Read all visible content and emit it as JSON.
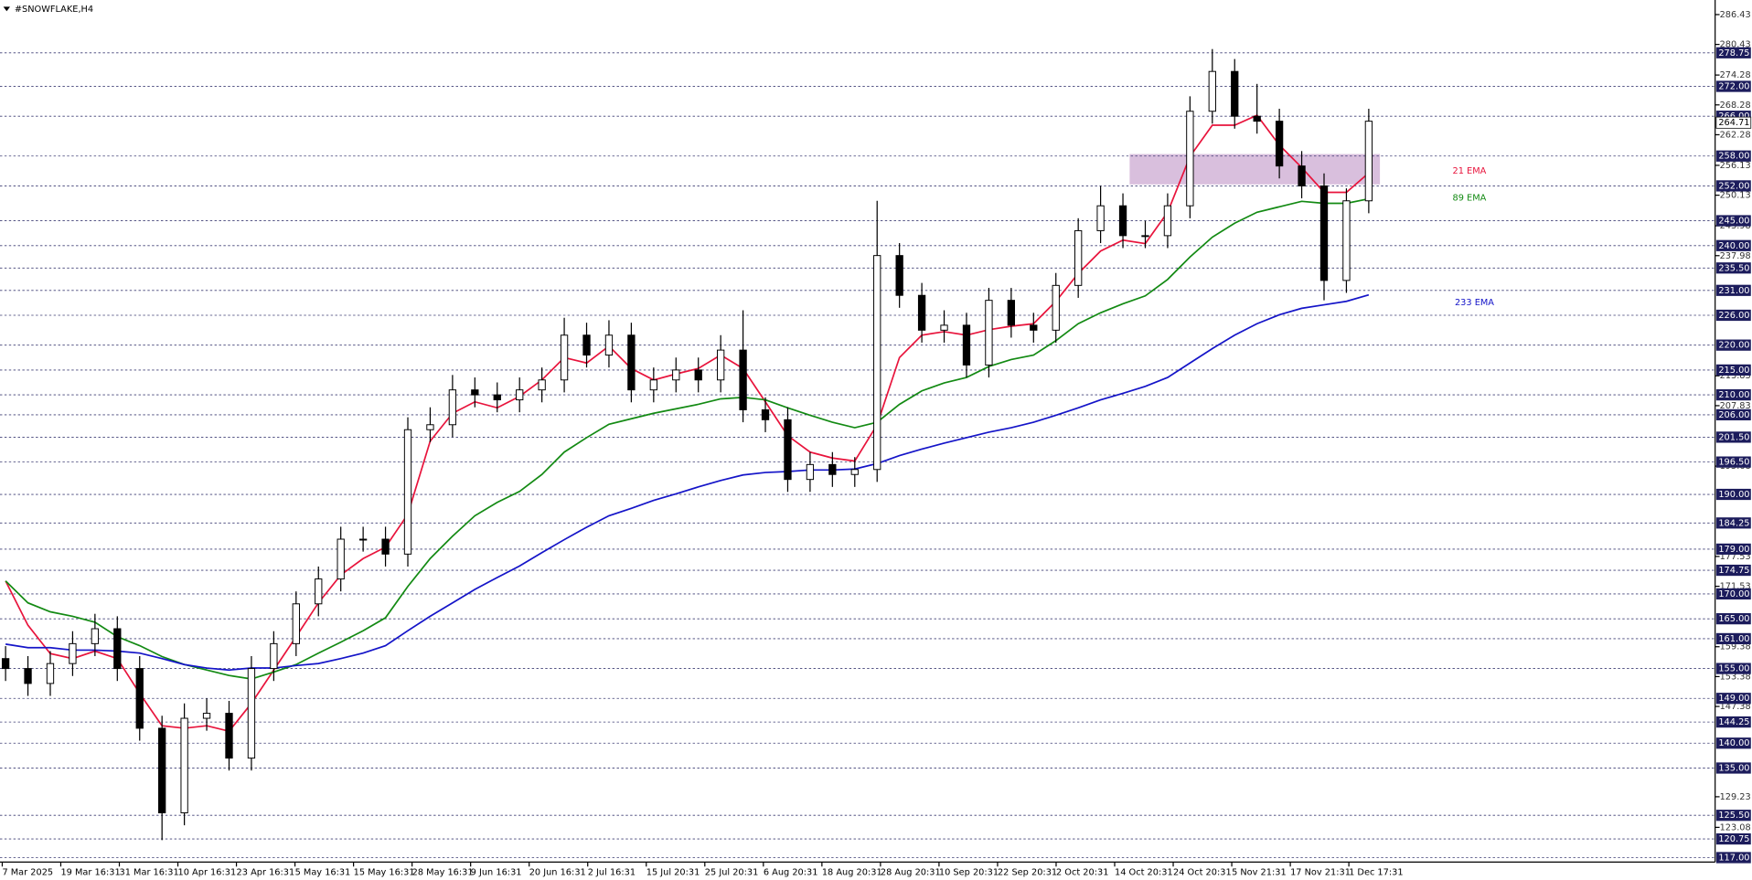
{
  "chart_data": {
    "type": "candlestick",
    "title": "#SNOWFLAKE,H4",
    "ylim": [
      116.1,
      289.35
    ],
    "yticks": [
      286.43,
      280.43,
      274.28,
      268.28,
      262.28,
      256.13,
      250.13,
      243.98,
      237.98,
      213.83,
      207.83,
      195.68,
      177.53,
      171.53,
      159.38,
      153.38,
      147.38,
      129.23,
      123.08
    ],
    "levels": [
      278.75,
      {
        "value": 272,
        "label": "272.00"
      },
      {
        "value": 266,
        "label": "266.00"
      },
      {
        "value": 258,
        "label": "258.00"
      },
      {
        "value": 252,
        "label": "252.00"
      },
      {
        "value": 245,
        "label": "245.00"
      },
      {
        "value": 240,
        "label": "240.00"
      },
      {
        "value": 235.5,
        "label": "235.50"
      },
      {
        "value": 231,
        "label": "231.00"
      },
      {
        "value": 226,
        "label": "226.00"
      },
      {
        "value": 220,
        "label": "220.00"
      },
      {
        "value": 215,
        "label": "215.00"
      },
      {
        "value": 210,
        "label": "210.00"
      },
      {
        "value": 206,
        "label": "206.00"
      },
      {
        "value": 201.5,
        "label": "201.50"
      },
      {
        "value": 196.5,
        "label": "196.50"
      },
      {
        "value": 190,
        "label": "190.00"
      },
      184.25,
      {
        "value": 179,
        "label": "179.00"
      },
      174.75,
      {
        "value": 170,
        "label": "170.00"
      },
      {
        "value": 165,
        "label": "165.00"
      },
      {
        "value": 161,
        "label": "161.00"
      },
      {
        "value": 155,
        "label": "155.00"
      },
      {
        "value": 149,
        "label": "149.00"
      },
      144.25,
      {
        "value": 140,
        "label": "140.00"
      },
      {
        "value": 135,
        "label": "135.00"
      },
      {
        "value": 125.5,
        "label": "125.50"
      },
      120.75,
      {
        "value": 117,
        "label": "117.00"
      }
    ],
    "level_color": "#1c1c5c",
    "last_price": 264.71,
    "zone": {
      "ylim": [
        252.3,
        258.4
      ],
      "x_from": 50.3,
      "x_to": 61.5,
      "color": "#d9bfdd"
    },
    "x_labels": [
      "7 Mar 2025",
      "19 Mar 16:31",
      "31 Mar 16:31",
      "10 Apr 16:31",
      "23 Apr 16:31",
      "5 May 16:31",
      "15 May 16:31",
      "28 May 16:31",
      "9 Jun 16:31",
      "20 Jun 16:31",
      "2 Jul 16:31",
      "15 Jul 20:31",
      "25 Jul 20:31",
      "6 Aug 20:31",
      "18 Aug 20:31",
      "28 Aug 20:31",
      "10 Sep 20:31",
      "22 Sep 20:31",
      "2 Oct 20:31",
      "14 Oct 20:31",
      "24 Oct 20:31",
      "5 Nov 21:31",
      "17 Nov 21:31",
      "1 Dec 17:31"
    ],
    "up_color": "#ffffff",
    "down_color": "#000000",
    "ohlc": [
      [
        157,
        159.5,
        152.5,
        155
      ],
      [
        155,
        157.5,
        149.5,
        152
      ],
      [
        152,
        158.5,
        149.5,
        156
      ],
      [
        156,
        162.5,
        153.5,
        160
      ],
      [
        160,
        166,
        157.5,
        163
      ],
      [
        163,
        165.5,
        152.5,
        155
      ],
      [
        155,
        157.5,
        140.5,
        143
      ],
      [
        143,
        145.5,
        120.5,
        126
      ],
      [
        126,
        148,
        123.5,
        145
      ],
      [
        145,
        149,
        142.5,
        146
      ],
      [
        146,
        148.5,
        134.5,
        137
      ],
      [
        137,
        157.5,
        134.5,
        155
      ],
      [
        155,
        162.5,
        152.5,
        160
      ],
      [
        160,
        170.5,
        157.5,
        168
      ],
      [
        168,
        175.5,
        165.5,
        173
      ],
      [
        173,
        183.5,
        170.5,
        181
      ],
      [
        181,
        183.5,
        178.5,
        181
      ],
      [
        181,
        183.5,
        175.5,
        178
      ],
      [
        178,
        205.5,
        175.5,
        203
      ],
      [
        203,
        207.5,
        200.5,
        204
      ],
      [
        204,
        214,
        201.5,
        211
      ],
      [
        211,
        213.5,
        207.5,
        210
      ],
      [
        210,
        212.5,
        206.5,
        209
      ],
      [
        209,
        213.5,
        206.5,
        211
      ],
      [
        211,
        215.5,
        208.5,
        213
      ],
      [
        213,
        225.5,
        210.5,
        222
      ],
      [
        222,
        224.5,
        215.5,
        218
      ],
      [
        218,
        225,
        215.5,
        222
      ],
      [
        222,
        224.5,
        208.5,
        211
      ],
      [
        211,
        215.5,
        208.5,
        213
      ],
      [
        213,
        217.5,
        210.5,
        215
      ],
      [
        215,
        217.5,
        210.5,
        213
      ],
      [
        213,
        222,
        210.5,
        219
      ],
      [
        219,
        227,
        204.5,
        207
      ],
      [
        207,
        209.5,
        202.5,
        205
      ],
      [
        205,
        207.5,
        190.5,
        193
      ],
      [
        193,
        198.5,
        190.5,
        196
      ],
      [
        196,
        198.5,
        191.5,
        194
      ],
      [
        194,
        197.5,
        191.5,
        195
      ],
      [
        195,
        249,
        192.5,
        238
      ],
      [
        238,
        240.5,
        227.5,
        230
      ],
      [
        230,
        232.5,
        220.5,
        223
      ],
      [
        223,
        227,
        220.5,
        224
      ],
      [
        224,
        226.5,
        213.5,
        216
      ],
      [
        216,
        231.5,
        213.5,
        229
      ],
      [
        229,
        231.5,
        221.5,
        224
      ],
      [
        224,
        226.5,
        220.5,
        223
      ],
      [
        223,
        234.5,
        220.5,
        232
      ],
      [
        232,
        245.5,
        229.5,
        243
      ],
      [
        243,
        252,
        240.5,
        248
      ],
      [
        248,
        250.5,
        239.5,
        242
      ],
      [
        242,
        245,
        239.5,
        242
      ],
      [
        242,
        250.5,
        239.5,
        248
      ],
      [
        248,
        270,
        245.5,
        267
      ],
      [
        267,
        279.5,
        264.5,
        275
      ],
      [
        275,
        277.5,
        263.5,
        266
      ],
      [
        266,
        272.5,
        262.5,
        265
      ],
      [
        265,
        267.5,
        253.5,
        256
      ],
      [
        256,
        259,
        249.5,
        252
      ],
      [
        252,
        254.5,
        229,
        233
      ],
      [
        233,
        251.5,
        230.5,
        249
      ],
      [
        249,
        267.5,
        246.5,
        265
      ]
    ],
    "series": [
      {
        "name": "21 EMA",
        "color": "#e8143c",
        "values": [
          172.6,
          163.7,
          158,
          157,
          158.5,
          157,
          150,
          143.5,
          143,
          143.5,
          142.4,
          148,
          154.7,
          161.4,
          168.2,
          173.8,
          177.1,
          179.4,
          186,
          200.7,
          206.3,
          208.6,
          207.4,
          209.7,
          213,
          217.5,
          216.4,
          219.8,
          215.3,
          213,
          214.2,
          215.3,
          218,
          215.3,
          208.6,
          201.8,
          198.5,
          197.3,
          196.7,
          204,
          217.5,
          222,
          222.7,
          222,
          223.1,
          223.8,
          224.3,
          228.8,
          234.4,
          238.9,
          241.1,
          240.4,
          246.7,
          257.9,
          264.2,
          264.2,
          266.2,
          260.2,
          255.7,
          250.7,
          250.7,
          254.6
        ]
      },
      {
        "name": "89 EMA",
        "color": "#138a13",
        "values": [
          172.6,
          168.2,
          166.4,
          165.5,
          164.3,
          161.4,
          159.6,
          157.4,
          155.8,
          154.7,
          153.6,
          152.9,
          154.3,
          155.8,
          158.1,
          160.3,
          162.6,
          165.2,
          171.5,
          177.1,
          181.6,
          185.7,
          188.4,
          190.6,
          194,
          198.5,
          201.4,
          204.1,
          205.2,
          206.3,
          207.2,
          208.1,
          209.2,
          209.5,
          209,
          207.4,
          205.9,
          204.5,
          203.4,
          204.5,
          208.1,
          210.8,
          212.4,
          213.5,
          215.7,
          217.1,
          218,
          220.9,
          224.3,
          226.5,
          228.3,
          229.9,
          233.2,
          237.7,
          241.7,
          244.5,
          246.7,
          247.8,
          248.9,
          248.5,
          248.5,
          249.4
        ]
      },
      {
        "name": "233 EMA",
        "color": "#1414c8",
        "values": [
          159.9,
          159.2,
          159.2,
          158.7,
          158.7,
          158.5,
          158.1,
          157,
          155.8,
          155.1,
          154.7,
          155.1,
          155.1,
          155.6,
          156,
          157,
          158.1,
          159.6,
          162.6,
          165.5,
          168.2,
          170.9,
          173.3,
          175.6,
          178.3,
          180.9,
          183.4,
          185.7,
          187.2,
          188.8,
          190.1,
          191.5,
          192.8,
          193.9,
          194.4,
          194.6,
          194.9,
          194.9,
          195.1,
          196.2,
          197.8,
          199.1,
          200.3,
          201.4,
          202.5,
          203.4,
          204.5,
          205.9,
          207.4,
          209,
          210.3,
          211.7,
          213.5,
          216.4,
          219.3,
          222,
          224.3,
          226.1,
          227.4,
          228.1,
          228.8,
          230.1
        ]
      }
    ]
  }
}
